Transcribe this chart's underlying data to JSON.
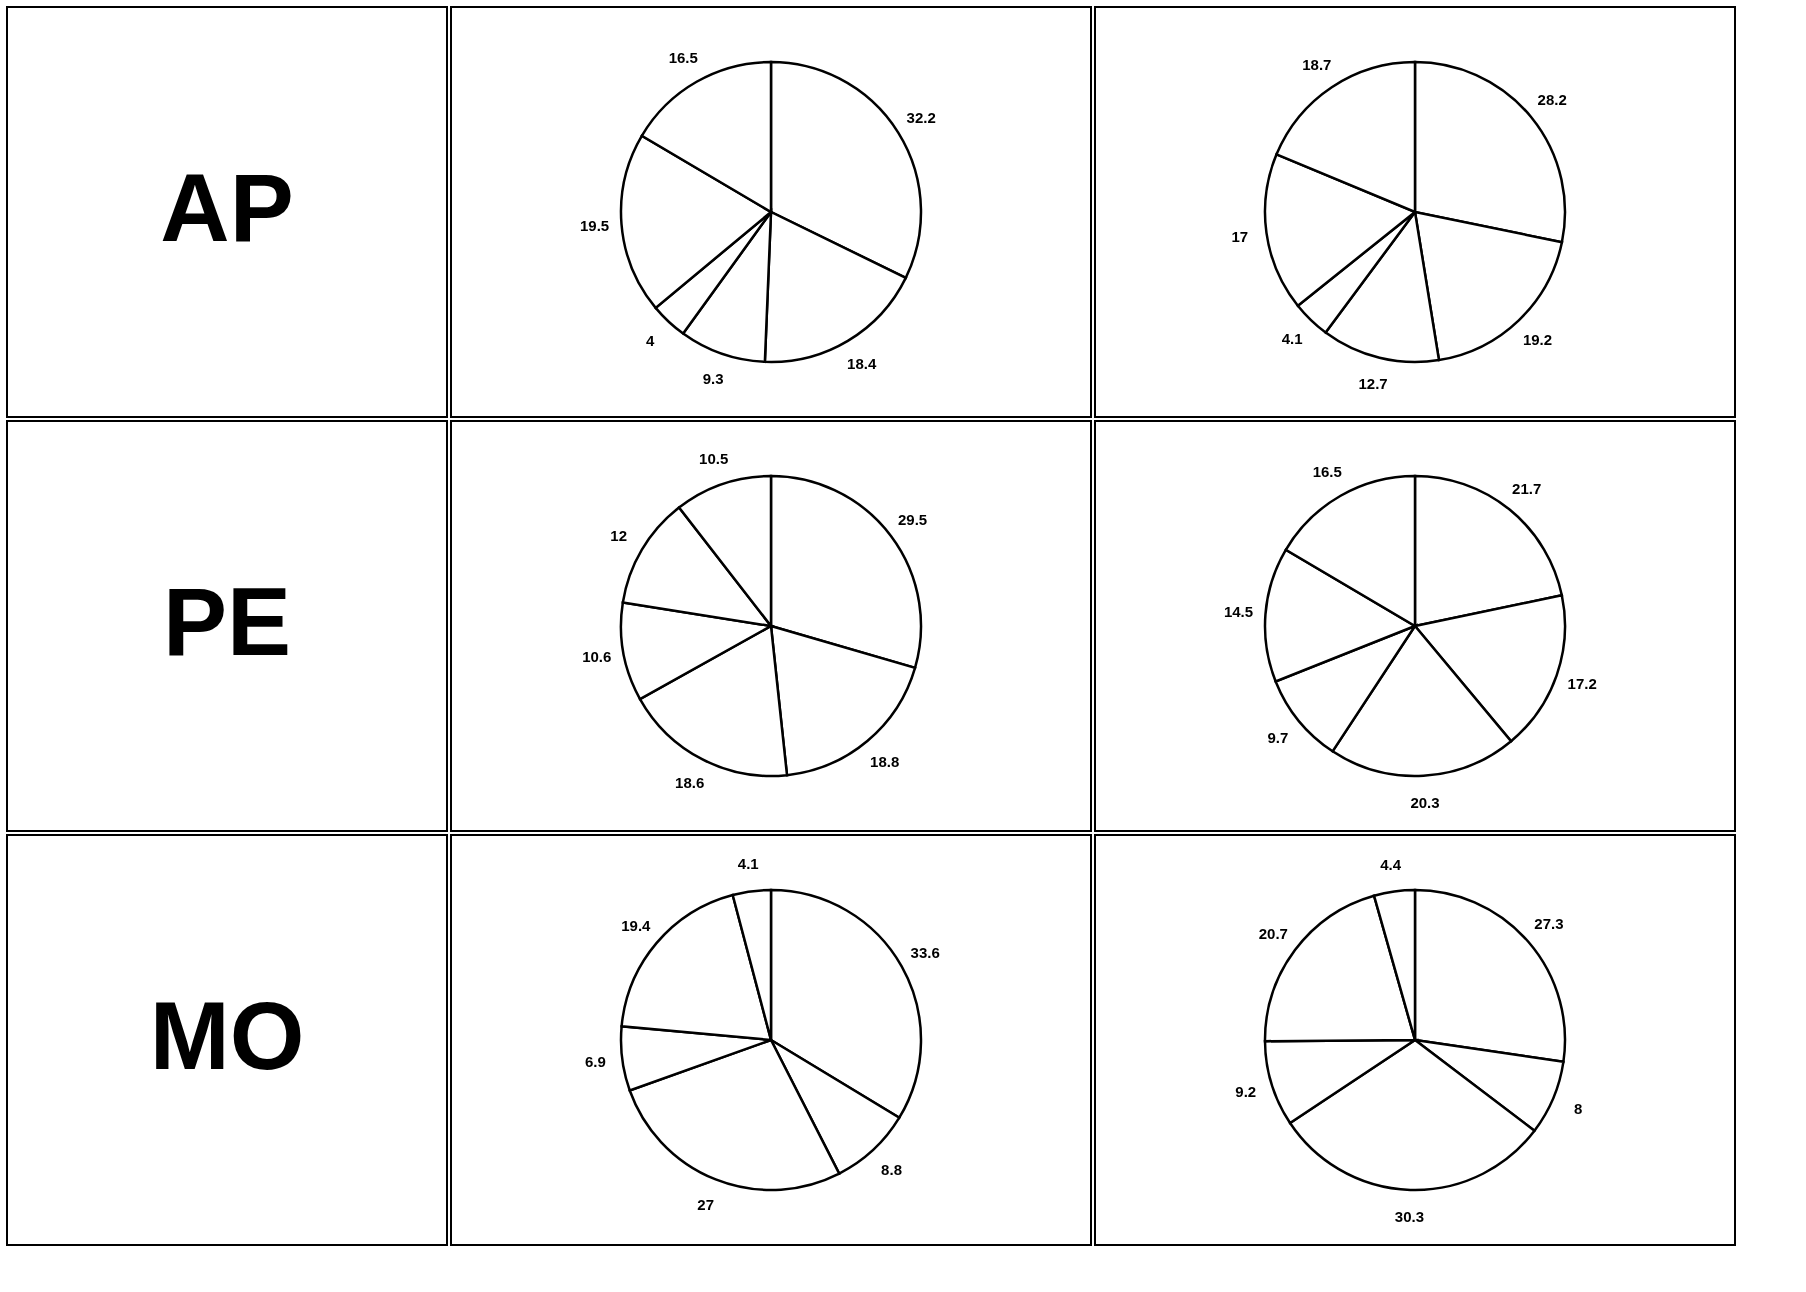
{
  "chart_data": [
    {
      "type": "other",
      "title": "AP"
    },
    {
      "type": "pie",
      "categories": [
        null,
        null,
        null,
        null,
        null,
        null
      ],
      "values": [
        32.2,
        18.4,
        9.3,
        4,
        19.5,
        16.5
      ],
      "colors": [
        "#ffffff",
        "#ffffff",
        "#ffffff",
        "#ffffff",
        "#ffffff",
        "#ffffff"
      ],
      "data_labels": true
    },
    {
      "type": "pie",
      "categories": [
        null,
        null,
        null,
        null,
        null,
        null
      ],
      "values": [
        28.2,
        19.2,
        12.7,
        4.1,
        17,
        18.7
      ],
      "colors": [
        "#ffffff",
        "#ffffff",
        "#ffffff",
        "#ffffff",
        "#ffffff",
        "#ffffff"
      ],
      "data_labels": true
    },
    {
      "type": "other",
      "title": "PE"
    },
    {
      "type": "pie",
      "categories": [
        null,
        null,
        null,
        null,
        null,
        null
      ],
      "values": [
        29.5,
        18.8,
        18.6,
        10.6,
        12,
        10.5
      ],
      "colors": [
        "#ffffff",
        "#ffffff",
        "#ffffff",
        "#ffffff",
        "#ffffff",
        "#ffffff"
      ],
      "data_labels": true
    },
    {
      "type": "pie",
      "categories": [
        null,
        null,
        null,
        null,
        null,
        null
      ],
      "values": [
        21.7,
        17.2,
        20.3,
        9.7,
        14.5,
        16.5
      ],
      "colors": [
        "#ffffff",
        "#ffffff",
        "#ffffff",
        "#ffffff",
        "#ffffff",
        "#ffffff"
      ],
      "data_labels": true
    },
    {
      "type": "other",
      "title": "MO"
    },
    {
      "type": "pie",
      "categories": [
        null,
        null,
        null,
        null,
        null,
        null
      ],
      "values": [
        33.6,
        8.8,
        27,
        6.9,
        19.4,
        4.1
      ],
      "colors": [
        "#ffffff",
        "#ffffff",
        "#ffffff",
        "#ffffff",
        "#ffffff",
        "#ffffff"
      ],
      "data_labels": true
    },
    {
      "type": "pie",
      "categories": [
        null,
        null,
        null,
        null,
        null,
        null
      ],
      "values": [
        27.3,
        8,
        30.3,
        9.2,
        20.7,
        4.4
      ],
      "colors": [
        "#ffffff",
        "#ffffff",
        "#ffffff",
        "#ffffff",
        "#ffffff",
        "#ffffff"
      ],
      "data_labels": true
    }
  ]
}
